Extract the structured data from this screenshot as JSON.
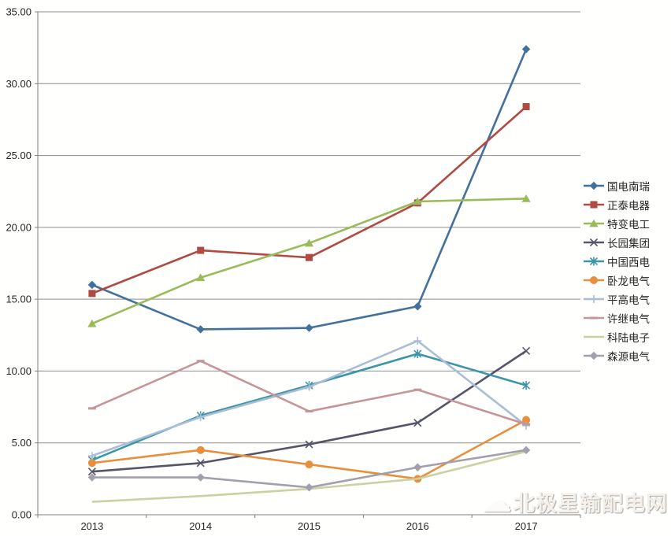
{
  "chart_data": {
    "type": "line",
    "title": "",
    "xlabel": "",
    "ylabel": "",
    "categories": [
      "2013",
      "2014",
      "2015",
      "2016",
      "2017"
    ],
    "series": [
      {
        "name": "国电南瑞",
        "values": [
          16.0,
          12.9,
          13.0,
          14.5,
          32.4
        ],
        "color": "#41719C",
        "marker": "diamond"
      },
      {
        "name": "正泰电器",
        "values": [
          15.4,
          18.4,
          17.9,
          21.7,
          28.4
        ],
        "color": "#B04A42",
        "marker": "square"
      },
      {
        "name": "特变电工",
        "values": [
          13.3,
          16.5,
          18.9,
          21.8,
          22.0
        ],
        "color": "#9ABB59",
        "marker": "triangle"
      },
      {
        "name": "长园集团",
        "values": [
          3.0,
          3.6,
          4.9,
          6.4,
          11.4
        ],
        "color": "#55556A",
        "marker": "x"
      },
      {
        "name": "中国西电",
        "values": [
          3.8,
          6.9,
          9.0,
          11.2,
          9.0
        ],
        "color": "#3C95A9",
        "marker": "asterisk"
      },
      {
        "name": "卧龙电气",
        "values": [
          3.6,
          4.5,
          3.5,
          2.5,
          6.6
        ],
        "color": "#E78F3D",
        "marker": "circle"
      },
      {
        "name": "平高电气",
        "values": [
          4.1,
          6.8,
          8.9,
          12.1,
          6.2
        ],
        "color": "#A9BDD4",
        "marker": "plus"
      },
      {
        "name": "许继电气",
        "values": [
          7.4,
          10.7,
          7.2,
          8.7,
          6.3
        ],
        "color": "#C69598",
        "marker": "dash"
      },
      {
        "name": "科陆电子",
        "values": [
          0.9,
          1.3,
          1.8,
          2.5,
          4.4
        ],
        "color": "#CCD0A2",
        "marker": "none"
      },
      {
        "name": "森源电气",
        "values": [
          2.6,
          2.6,
          1.9,
          3.3,
          4.5
        ],
        "color": "#A39FAC",
        "marker": "diamond"
      }
    ],
    "ylim": [
      0,
      35
    ],
    "ytick_step": 5,
    "ytick_labels": [
      "0.00",
      "5.00",
      "10.00",
      "15.00",
      "20.00",
      "25.00",
      "30.00",
      "35.00"
    ],
    "grid": true,
    "legend_position": "right"
  },
  "watermark": {
    "text": "北极星输配电网",
    "icon": "cloud-logo"
  },
  "colors": {
    "gridline": "#8C8C8C",
    "axis": "#7F7F7F",
    "background": "#FFFFFE",
    "label": "#262626"
  }
}
